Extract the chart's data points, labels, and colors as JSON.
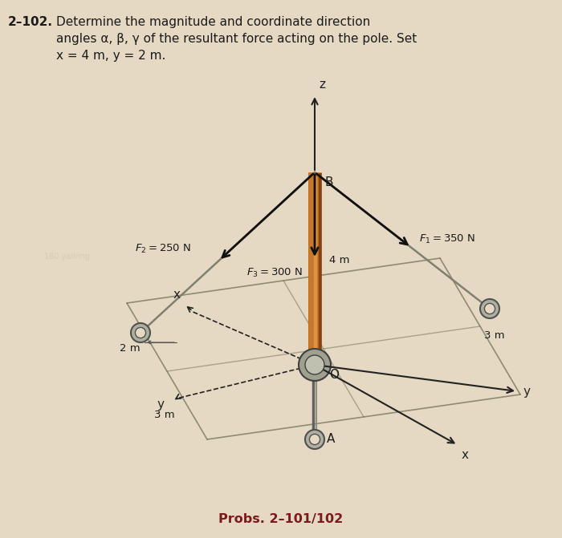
{
  "bg_color": "#e5d9c3",
  "text_color": "#1a1a1a",
  "footer_color": "#7a1a1a",
  "footer_text": "Probs. 2–101/102",
  "pole_color_main": "#c8782a",
  "pole_color_light": "#e8a050",
  "pole_color_dark": "#8b4010",
  "cable_color": "#808070",
  "axis_color": "#222222",
  "ground_line_color": "#6a6a50",
  "anchor_face": "#b0b0a0",
  "anchor_edge": "#505050",
  "base_face": "#a0a090",
  "base_edge": "#404040",
  "F1_label": "$F_1 = 350$ N",
  "F2_label": "$F_2 = 250$ N",
  "F3_label": "$F_3 = 300$ N",
  "dim_4m": "4 m",
  "dim_3m_a": "3 m",
  "dim_3m_b": "3 m",
  "dim_2m": "2 m",
  "label_B": "B",
  "label_O": "O",
  "label_A": "A",
  "label_z": "z",
  "label_y": "y",
  "label_x": "x",
  "header_bold": "2–102.",
  "header_text": "Determine the magnitude and coordinate direction\nangles α, β, γ of the resultant force acting on the pole. Set\nx = 4 m, y = 2 m."
}
